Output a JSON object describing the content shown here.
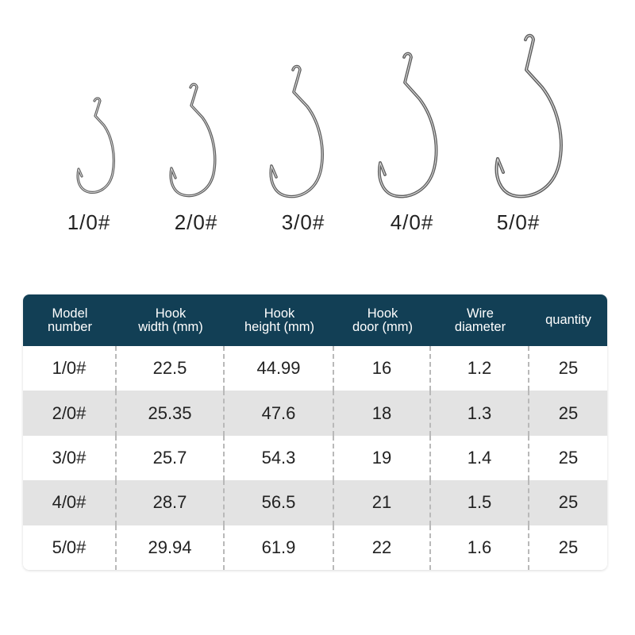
{
  "hooks": [
    {
      "size": "1/0#"
    },
    {
      "size": "2/0#"
    },
    {
      "size": "3/0#"
    },
    {
      "size": "4/0#"
    },
    {
      "size": "5/0#"
    }
  ],
  "table": {
    "header_color": "#123f55",
    "stripe_color": "#e3e3e3",
    "columns": [
      "Model\nnumber",
      "Hook\nwidth (mm)",
      "Hook\nheight (mm)",
      "Hook\ndoor (mm)",
      "Wire\ndiameter",
      "quantity"
    ],
    "rows": [
      [
        "1/0#",
        "22.5",
        "44.99",
        "16",
        "1.2",
        "25"
      ],
      [
        "2/0#",
        "25.35",
        "47.6",
        "18",
        "1.3",
        "25"
      ],
      [
        "3/0#",
        "25.7",
        "54.3",
        "19",
        "1.4",
        "25"
      ],
      [
        "4/0#",
        "28.7",
        "56.5",
        "21",
        "1.5",
        "25"
      ],
      [
        "5/0#",
        "29.94",
        "61.9",
        "22",
        "1.6",
        "25"
      ]
    ]
  }
}
